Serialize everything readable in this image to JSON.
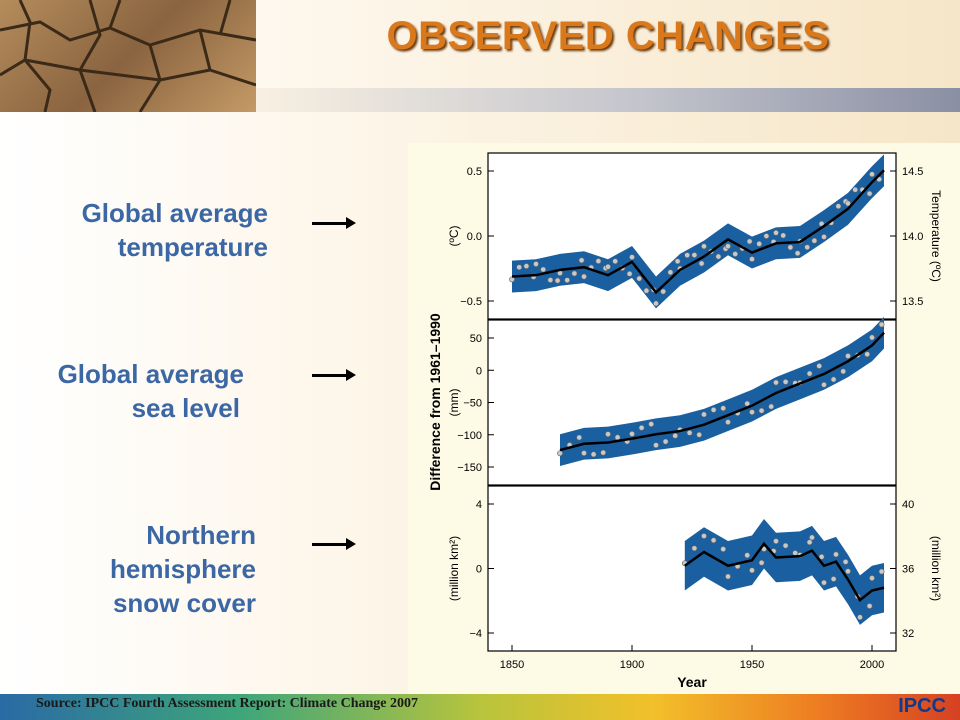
{
  "slide": {
    "title": "OBSERVED CHANGES",
    "labels": [
      {
        "lines": [
          "Global average",
          "temperature"
        ]
      },
      {
        "lines": [
          "Global average",
          "sea level"
        ]
      },
      {
        "lines": [
          "Northern",
          "hemisphere",
          "snow cover"
        ]
      }
    ],
    "source": "Source: IPCC Fourth Assessment Report: Climate Change 2007",
    "logo": "IPCC"
  },
  "chart_data": {
    "type": "line",
    "shared_ylabel": "Difference from 1961–1990",
    "xlabel": "Year",
    "x_ticks": [
      "1850",
      "1900",
      "1950",
      "2000"
    ],
    "xlim": [
      1840,
      2010
    ],
    "panels": [
      {
        "name": "temperature",
        "ylabel_left": "(ºC)",
        "ylabel_right": "Temperature (ºC)",
        "yticks_left": [
          "0.5",
          "0.0",
          "−0.5"
        ],
        "yticks_right": [
          "14.5",
          "14.0",
          "13.5"
        ],
        "ylim": [
          -0.65,
          0.6
        ],
        "x": [
          1850,
          1860,
          1870,
          1880,
          1890,
          1900,
          1910,
          1920,
          1930,
          1940,
          1950,
          1960,
          1970,
          1980,
          1990,
          2000,
          2005
        ],
        "smooth": [
          -0.33,
          -0.32,
          -0.28,
          -0.26,
          -0.32,
          -0.22,
          -0.45,
          -0.28,
          -0.18,
          -0.05,
          -0.15,
          -0.08,
          -0.07,
          0.05,
          0.18,
          0.38,
          0.47
        ],
        "band_halfwidth": 0.12
      },
      {
        "name": "sea level",
        "ylabel_left": "(mm)",
        "yticks_left": [
          "50",
          "0",
          "−50",
          "−100",
          "−150"
        ],
        "ylim": [
          -185,
          75
        ],
        "x": [
          1870,
          1880,
          1890,
          1900,
          1910,
          1920,
          1930,
          1940,
          1950,
          1960,
          1970,
          1980,
          1990,
          2000,
          2005
        ],
        "smooth": [
          -130,
          -120,
          -118,
          -112,
          -105,
          -100,
          -90,
          -75,
          -60,
          -40,
          -25,
          -10,
          10,
          35,
          55
        ],
        "band_halfwidth": 25
      },
      {
        "name": "snow cover",
        "ylabel_left": "(million km²)",
        "ylabel_right": "(million km²)",
        "yticks_left": [
          "4",
          "0",
          "−4"
        ],
        "yticks_right": [
          "40",
          "36",
          "32"
        ],
        "ylim": [
          -6,
          6
        ],
        "x": [
          1922,
          1930,
          1940,
          1950,
          1955,
          1960,
          1970,
          1975,
          1980,
          1985,
          1990,
          1995,
          2000,
          2005
        ],
        "smooth": [
          0.2,
          1.2,
          0.2,
          0.6,
          1.8,
          0.8,
          0.9,
          1.3,
          0.2,
          0.5,
          -0.8,
          -2.3,
          -1.6,
          -1.4
        ],
        "band_halfwidth": 1.8
      }
    ]
  }
}
